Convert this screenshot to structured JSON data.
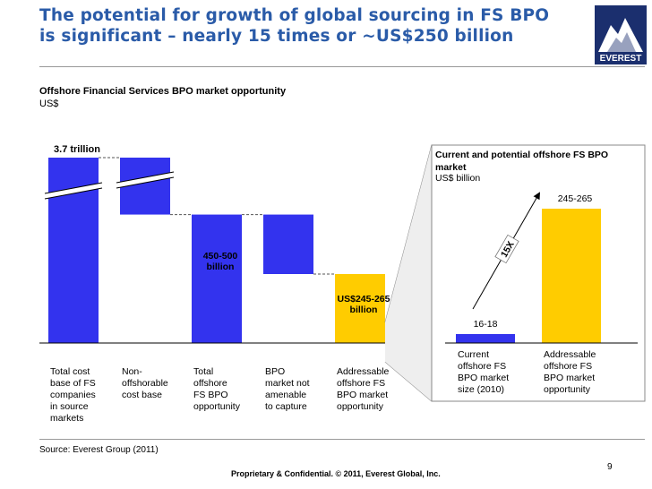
{
  "slide": {
    "title_line1": "The potential for growth of global sourcing in FS BPO",
    "title_line2": "is significant – nearly 15 times or ~US$250 billion",
    "logo_text": "EVEREST",
    "subtitle": "Offshore Financial Services BPO market opportunity",
    "unit": "US$",
    "source": "Source:   Everest Group (2011)",
    "footer": "Proprietary & Confidential. © 2011, Everest Global, Inc.",
    "page_number": "9",
    "colors": {
      "title": "#2a5ba8",
      "bar_blue": "#3333ee",
      "bar_yellow": "#ffcc00"
    }
  },
  "chart_data": [
    {
      "type": "bar",
      "subtype": "waterfall",
      "unit": "US$",
      "categories": [
        "Total cost base of FS companies in source markets",
        "Non-offshorable cost base",
        "Total offshore FS BPO opportunity",
        "BPO market not amenable to capture",
        "Addressable offshore FS BPO market opportunity"
      ],
      "category_lines": [
        [
          "Total cost",
          "base of FS",
          "companies",
          "in source",
          "markets"
        ],
        [
          "Non-",
          "offshorable",
          "cost base"
        ],
        [
          "Total",
          "offshore",
          "FS BPO",
          "opportunity"
        ],
        [
          "BPO",
          "market not",
          "amenable",
          "to capture"
        ],
        [
          "Addressable",
          "offshore FS",
          "BPO market",
          "opportunity"
        ]
      ],
      "data_labels": [
        "3.7 trillion",
        "",
        "450-500 billion",
        "",
        "US$245-265 billion"
      ],
      "values_usd_billion": [
        3700,
        -3225,
        475,
        -220,
        255
      ],
      "colors": [
        "#3333ee",
        "#3333ee",
        "#3333ee",
        "#3333ee",
        "#ffcc00"
      ],
      "axis_break": true
    },
    {
      "type": "bar",
      "title": "Current and potential offshore FS BPO market",
      "unit": "US$ billion",
      "categories": [
        "Current offshore FS BPO market size (2010)",
        "Addressable offshore FS BPO market opportunity"
      ],
      "category_lines": [
        [
          "Current",
          "offshore FS",
          "BPO market",
          "size (2010)"
        ],
        [
          "Addressable",
          "offshore FS",
          "BPO market",
          "opportunity"
        ]
      ],
      "data_labels": [
        "16-18",
        "245-265"
      ],
      "values": [
        17,
        255
      ],
      "ranges": [
        [
          16,
          18
        ],
        [
          245,
          265
        ]
      ],
      "colors": [
        "#3333ee",
        "#ffcc00"
      ],
      "growth_annotation": "15X"
    }
  ]
}
